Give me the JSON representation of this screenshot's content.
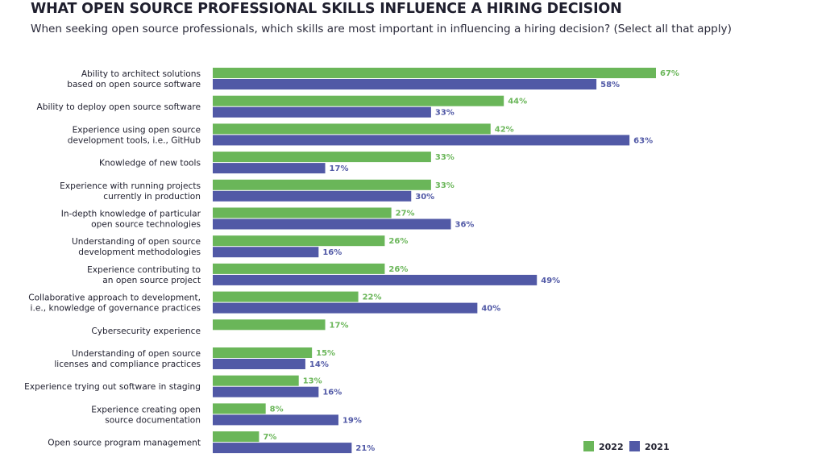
{
  "chart_data": {
    "type": "bar",
    "orientation": "horizontal",
    "title": "WHAT OPEN SOURCE PROFESSIONAL SKILLS INFLUENCE A HIRING DECISION",
    "subtitle": "When seeking open source professionals, which skills are most important in influencing a hiring decision? (Select all that apply)",
    "categories": [
      [
        "Ability to architect solutions",
        "based on open source software"
      ],
      [
        "Ability to deploy open source software"
      ],
      [
        "Experience using open source",
        "development tools, i.e., GitHub"
      ],
      [
        "Knowledge of new tools"
      ],
      [
        "Experience with running projects",
        "currently in production"
      ],
      [
        "In-depth knowledge of particular",
        "open source technologies"
      ],
      [
        "Understanding of open source",
        "development methodologies"
      ],
      [
        "Experience contributing to",
        "an open source project"
      ],
      [
        "Collaborative approach to development,",
        "i.e., knowledge of governance practices"
      ],
      [
        "Cybersecurity experience"
      ],
      [
        "Understanding of open source",
        "licenses and compliance practices"
      ],
      [
        "Experience trying out software in staging"
      ],
      [
        "Experience creating open",
        "source documentation"
      ],
      [
        "Open source program management"
      ]
    ],
    "series": [
      {
        "name": "2022",
        "color": "#6ab659",
        "values": [
          67,
          44,
          42,
          33,
          33,
          27,
          26,
          26,
          22,
          17,
          15,
          13,
          8,
          7
        ]
      },
      {
        "name": "2021",
        "color": "#5159a6",
        "values": [
          58,
          33,
          63,
          17,
          30,
          36,
          16,
          49,
          40,
          null,
          14,
          16,
          19,
          21
        ]
      }
    ],
    "value_suffix": "%",
    "xlim": [
      0,
      67
    ],
    "grid": false,
    "legend_position": "bottom-right"
  }
}
